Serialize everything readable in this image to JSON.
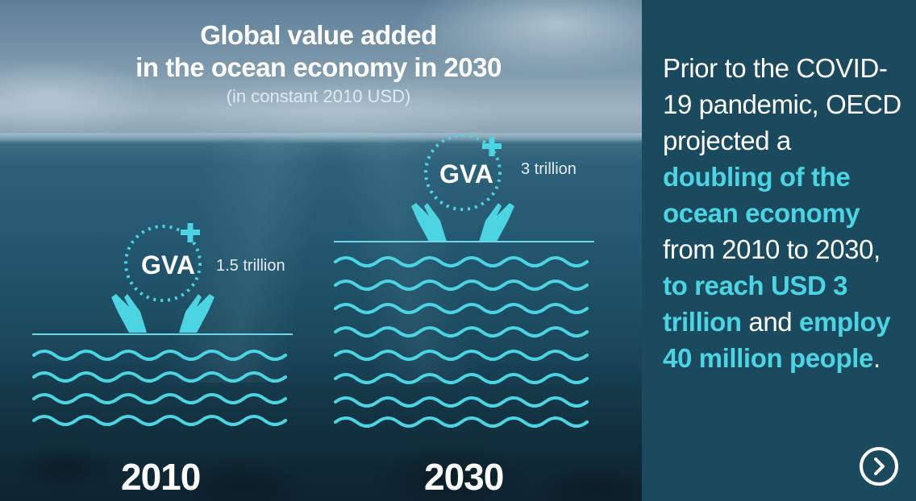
{
  "title": {
    "line1": "Global value added",
    "line2": "in the ocean economy in 2030",
    "subtitle": "(in constant 2010 USD)"
  },
  "years": [
    {
      "label": "2010",
      "gva_label": "GVA",
      "amount": "1.5 trillion"
    },
    {
      "label": "2030",
      "gva_label": "GVA",
      "amount": "3 trillion"
    }
  ],
  "panel": {
    "t1": "Prior to the COVID-19 pandemic, OECD projected a ",
    "h1": "doubling of the ocean economy",
    "t2": " from 2010 to 2030, ",
    "h2": "to reach USD 3 trillion",
    "t3": " and ",
    "h3": "employ 40 million people",
    "t4": "."
  },
  "colors": {
    "accent": "#4dd4e3",
    "panel_bg": "#1b4a5e"
  },
  "icons": {
    "next": "chevron-right-circle-icon",
    "gva": "plus-icon",
    "hands": "hands-icon",
    "waves": "waves-icon"
  }
}
